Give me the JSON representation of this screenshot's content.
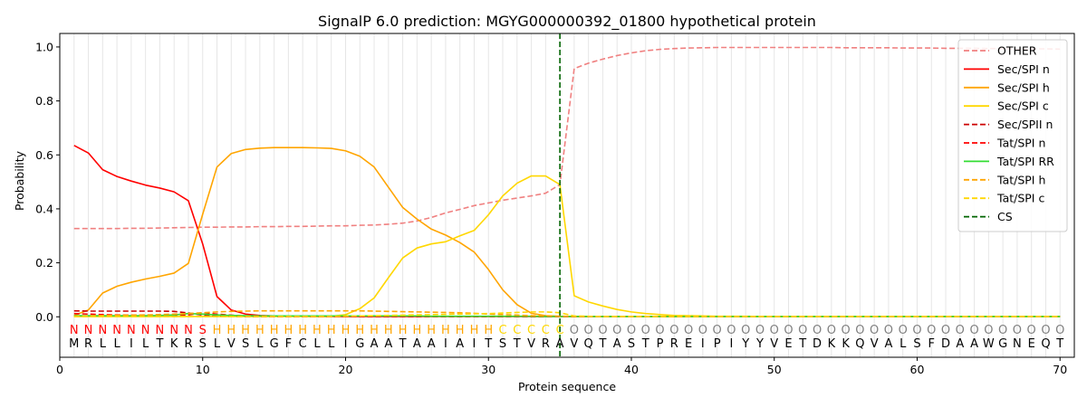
{
  "chart_data": {
    "type": "line",
    "title": "SignalP 6.0 prediction: MGYG000000392_01800 hypothetical protein",
    "xlabel": "Protein sequence",
    "ylabel": "Probability",
    "xlim": [
      0,
      71
    ],
    "ylim": [
      -0.15,
      1.05
    ],
    "xticks": [
      0,
      10,
      20,
      30,
      40,
      50,
      60,
      70
    ],
    "yticks": [
      0.0,
      0.2,
      0.4,
      0.6,
      0.8,
      1.0
    ],
    "ytick_labels": [
      "0.0",
      "0.2",
      "0.4",
      "0.6",
      "0.8",
      "1.0"
    ],
    "grid": "vertical lines at every residue",
    "legend_position": "top-right",
    "cleavage_site": 35,
    "sequence": [
      "M",
      "R",
      "L",
      "L",
      "I",
      "L",
      "T",
      "K",
      "R",
      "S",
      "L",
      "V",
      "S",
      "L",
      "G",
      "F",
      "C",
      "L",
      "L",
      "I",
      "G",
      "A",
      "A",
      "T",
      "A",
      "A",
      "I",
      "A",
      "I",
      "T",
      "S",
      "T",
      "V",
      "R",
      "A",
      "V",
      "Q",
      "T",
      "A",
      "S",
      "T",
      "P",
      "R",
      "E",
      "I",
      "P",
      "I",
      "Y",
      "Y",
      "V",
      "E",
      "T",
      "D",
      "K",
      "K",
      "Q",
      "V",
      "A",
      "L",
      "S",
      "F",
      "D",
      "A",
      "A",
      "W",
      "G",
      "N",
      "E",
      "Q",
      "T"
    ],
    "labels": [
      "N",
      "N",
      "N",
      "N",
      "N",
      "N",
      "N",
      "N",
      "N",
      "S",
      "H",
      "H",
      "H",
      "H",
      "H",
      "H",
      "H",
      "H",
      "H",
      "H",
      "H",
      "H",
      "H",
      "H",
      "H",
      "H",
      "H",
      "H",
      "H",
      "H",
      "C",
      "C",
      "C",
      "C",
      "C",
      "O",
      "O",
      "O",
      "O",
      "O",
      "O",
      "O",
      "O",
      "O",
      "O",
      "O",
      "O",
      "O",
      "O",
      "O",
      "O",
      "O",
      "O",
      "O",
      "O",
      "O",
      "O",
      "O",
      "O",
      "O",
      "O",
      "O",
      "O",
      "O",
      "O",
      "O",
      "O",
      "O",
      "O",
      "O"
    ],
    "label_colors": {
      "N": "#ff0000",
      "S": "#ff0000",
      "H": "#ffa500",
      "C": "#ffd700",
      "O": "#808080"
    },
    "series": [
      {
        "name": "OTHER",
        "color": "#f08080",
        "dash": true,
        "values": [
          0.327,
          0.327,
          0.327,
          0.327,
          0.328,
          0.328,
          0.329,
          0.33,
          0.331,
          0.332,
          0.332,
          0.333,
          0.333,
          0.334,
          0.334,
          0.335,
          0.335,
          0.336,
          0.337,
          0.337,
          0.339,
          0.34,
          0.343,
          0.347,
          0.355,
          0.368,
          0.385,
          0.398,
          0.412,
          0.422,
          0.432,
          0.44,
          0.448,
          0.458,
          0.49,
          0.92,
          0.94,
          0.955,
          0.968,
          0.978,
          0.986,
          0.991,
          0.994,
          0.996,
          0.997,
          0.998,
          0.998,
          0.998,
          0.998,
          0.998,
          0.998,
          0.998,
          0.998,
          0.998,
          0.997,
          0.997,
          0.997,
          0.997,
          0.996,
          0.996,
          0.996,
          0.995,
          0.995,
          0.995,
          0.994,
          0.994,
          0.993,
          0.993,
          0.993,
          0.992
        ]
      },
      {
        "name": "Sec/SPI n",
        "color": "#ff0000",
        "dash": false,
        "values": [
          0.635,
          0.607,
          0.545,
          0.52,
          0.503,
          0.488,
          0.477,
          0.463,
          0.43,
          0.27,
          0.075,
          0.025,
          0.01,
          0.005,
          0.003,
          0.002,
          0.002,
          0.001,
          0.001,
          0.001,
          0.001,
          0.001,
          0.001,
          0.001,
          0.001,
          0.001,
          0.001,
          0.001,
          0.001,
          0.001,
          0.001,
          0.001,
          0.001,
          0.001,
          0.001,
          0.001,
          0.001,
          0.001,
          0.001,
          0.001,
          0.001,
          0.001,
          0.001,
          0.001,
          0.001,
          0.001,
          0.001,
          0.001,
          0.001,
          0.001,
          0.001,
          0.001,
          0.001,
          0.001,
          0.001,
          0.001,
          0.001,
          0.001,
          0.001,
          0.001,
          0.001,
          0.001,
          0.001,
          0.001,
          0.001,
          0.001,
          0.001,
          0.001,
          0.001,
          0.001
        ]
      },
      {
        "name": "Sec/SPI h",
        "color": "#ffa500",
        "dash": false,
        "values": [
          0.005,
          0.025,
          0.088,
          0.113,
          0.128,
          0.14,
          0.15,
          0.162,
          0.198,
          0.38,
          0.555,
          0.605,
          0.62,
          0.625,
          0.627,
          0.627,
          0.627,
          0.626,
          0.624,
          0.615,
          0.595,
          0.555,
          0.48,
          0.405,
          0.362,
          0.325,
          0.303,
          0.275,
          0.24,
          0.175,
          0.1,
          0.045,
          0.013,
          0.004,
          0.002,
          0.001,
          0.001,
          0.001,
          0.001,
          0.001,
          0.001,
          0.001,
          0.001,
          0.001,
          0.001,
          0.001,
          0.001,
          0.001,
          0.001,
          0.001,
          0.001,
          0.001,
          0.001,
          0.001,
          0.001,
          0.001,
          0.001,
          0.001,
          0.001,
          0.001,
          0.001,
          0.001,
          0.001,
          0.001,
          0.001,
          0.001,
          0.001,
          0.001,
          0.001,
          0.001
        ]
      },
      {
        "name": "Sec/SPI c",
        "color": "#ffd700",
        "dash": false,
        "values": [
          0.001,
          0.001,
          0.001,
          0.001,
          0.001,
          0.001,
          0.001,
          0.001,
          0.001,
          0.001,
          0.001,
          0.001,
          0.001,
          0.001,
          0.001,
          0.001,
          0.001,
          0.001,
          0.002,
          0.008,
          0.03,
          0.07,
          0.145,
          0.218,
          0.255,
          0.27,
          0.278,
          0.3,
          0.32,
          0.378,
          0.448,
          0.495,
          0.522,
          0.522,
          0.49,
          0.078,
          0.055,
          0.04,
          0.027,
          0.018,
          0.012,
          0.008,
          0.005,
          0.004,
          0.003,
          0.002,
          0.002,
          0.002,
          0.001,
          0.001,
          0.001,
          0.001,
          0.001,
          0.001,
          0.001,
          0.001,
          0.001,
          0.001,
          0.001,
          0.001,
          0.001,
          0.001,
          0.001,
          0.001,
          0.001,
          0.001,
          0.001,
          0.001,
          0.001,
          0.001
        ]
      },
      {
        "name": "Sec/SPII n",
        "color": "#cc0000",
        "dash": true,
        "values": [
          0.022,
          0.021,
          0.021,
          0.021,
          0.021,
          0.021,
          0.021,
          0.02,
          0.014,
          0.006,
          0.003,
          0.002,
          0.001,
          0.001,
          0.001,
          0.001,
          0.001,
          0.001,
          0.001,
          0.001,
          0.001,
          0.001,
          0.001,
          0.001,
          0.001,
          0.001,
          0.001,
          0.001,
          0.001,
          0.001,
          0.001,
          0.001,
          0.001,
          0.001,
          0.001,
          0.001,
          0.001,
          0.001,
          0.001,
          0.001,
          0.001,
          0.001,
          0.001,
          0.001,
          0.001,
          0.001,
          0.001,
          0.001,
          0.001,
          0.001,
          0.001,
          0.001,
          0.001,
          0.001,
          0.001,
          0.001,
          0.001,
          0.001,
          0.001,
          0.001,
          0.001,
          0.001,
          0.001,
          0.001,
          0.001,
          0.001,
          0.001,
          0.001,
          0.001,
          0.001
        ]
      },
      {
        "name": "Tat/SPI n",
        "color": "#ff0000",
        "dash": true,
        "values": [
          0.012,
          0.01,
          0.008,
          0.007,
          0.006,
          0.006,
          0.006,
          0.006,
          0.007,
          0.015,
          0.01,
          0.006,
          0.003,
          0.002,
          0.001,
          0.001,
          0.001,
          0.001,
          0.001,
          0.001,
          0.001,
          0.001,
          0.001,
          0.001,
          0.001,
          0.001,
          0.001,
          0.001,
          0.001,
          0.001,
          0.001,
          0.001,
          0.001,
          0.001,
          0.001,
          0.001,
          0.001,
          0.001,
          0.001,
          0.001,
          0.001,
          0.001,
          0.001,
          0.001,
          0.001,
          0.001,
          0.001,
          0.001,
          0.001,
          0.001,
          0.001,
          0.001,
          0.001,
          0.001,
          0.001,
          0.001,
          0.001,
          0.001,
          0.001,
          0.001,
          0.001,
          0.001,
          0.001,
          0.001,
          0.001,
          0.001,
          0.001,
          0.001,
          0.001,
          0.001
        ]
      },
      {
        "name": "Tat/SPI RR",
        "color": "#33dd33",
        "dash": false,
        "values": [
          0.004,
          0.004,
          0.004,
          0.004,
          0.004,
          0.004,
          0.005,
          0.007,
          0.012,
          0.01,
          0.007,
          0.005,
          0.004,
          0.003,
          0.003,
          0.003,
          0.003,
          0.003,
          0.003,
          0.003,
          0.003,
          0.003,
          0.003,
          0.003,
          0.003,
          0.002,
          0.002,
          0.002,
          0.002,
          0.002,
          0.002,
          0.002,
          0.002,
          0.001,
          0.001,
          0.001,
          0.001,
          0.001,
          0.001,
          0.001,
          0.001,
          0.001,
          0.001,
          0.001,
          0.001,
          0.001,
          0.001,
          0.001,
          0.001,
          0.001,
          0.001,
          0.001,
          0.001,
          0.001,
          0.001,
          0.001,
          0.001,
          0.001,
          0.001,
          0.001,
          0.001,
          0.001,
          0.001,
          0.001,
          0.001,
          0.001,
          0.001,
          0.001,
          0.001,
          0.001
        ]
      },
      {
        "name": "Tat/SPI h",
        "color": "#ffa500",
        "dash": true,
        "values": [
          0.002,
          0.003,
          0.005,
          0.006,
          0.006,
          0.007,
          0.008,
          0.01,
          0.012,
          0.015,
          0.018,
          0.02,
          0.021,
          0.022,
          0.022,
          0.022,
          0.022,
          0.022,
          0.022,
          0.022,
          0.022,
          0.021,
          0.02,
          0.019,
          0.018,
          0.017,
          0.016,
          0.015,
          0.013,
          0.01,
          0.008,
          0.006,
          0.004,
          0.003,
          0.002,
          0.001,
          0.001,
          0.001,
          0.001,
          0.001,
          0.001,
          0.001,
          0.001,
          0.001,
          0.001,
          0.001,
          0.001,
          0.001,
          0.001,
          0.001,
          0.001,
          0.001,
          0.001,
          0.001,
          0.001,
          0.001,
          0.001,
          0.001,
          0.001,
          0.001,
          0.001,
          0.001,
          0.001,
          0.001,
          0.001,
          0.001,
          0.001,
          0.001,
          0.001,
          0.001
        ]
      },
      {
        "name": "Tat/SPI c",
        "color": "#ffd700",
        "dash": true,
        "values": [
          0.001,
          0.001,
          0.001,
          0.001,
          0.001,
          0.001,
          0.001,
          0.001,
          0.001,
          0.001,
          0.001,
          0.001,
          0.001,
          0.001,
          0.001,
          0.001,
          0.001,
          0.001,
          0.001,
          0.002,
          0.003,
          0.004,
          0.005,
          0.006,
          0.007,
          0.008,
          0.009,
          0.01,
          0.011,
          0.012,
          0.014,
          0.016,
          0.018,
          0.018,
          0.015,
          0.003,
          0.002,
          0.001,
          0.001,
          0.001,
          0.001,
          0.001,
          0.001,
          0.001,
          0.001,
          0.001,
          0.001,
          0.001,
          0.001,
          0.001,
          0.001,
          0.001,
          0.001,
          0.001,
          0.001,
          0.001,
          0.001,
          0.001,
          0.001,
          0.001,
          0.001,
          0.001,
          0.001,
          0.001,
          0.001,
          0.001,
          0.001,
          0.001,
          0.001,
          0.001
        ]
      }
    ],
    "cs_marker": {
      "name": "CS",
      "color": "#006400",
      "dash": true
    }
  }
}
